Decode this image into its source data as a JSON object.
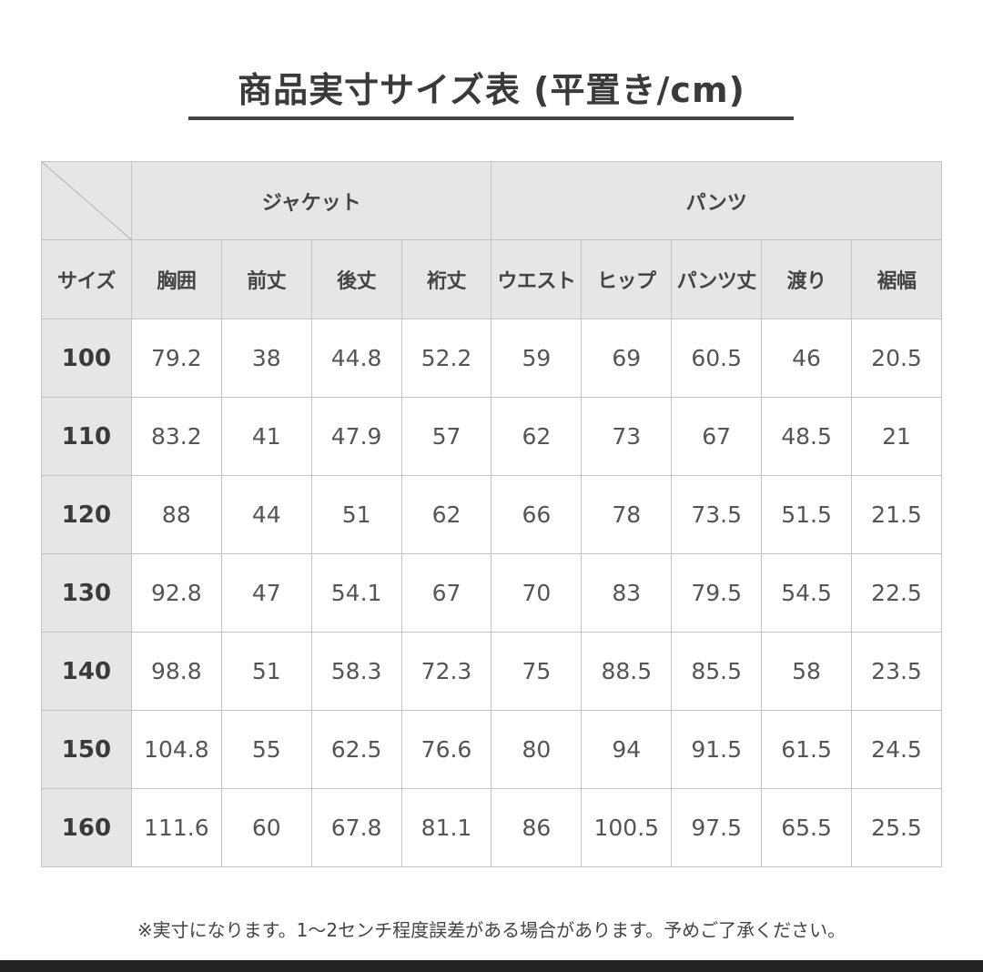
{
  "title": "商品実寸サイズ表 (平置き/cm)",
  "groups": {
    "jacket": "ジャケット",
    "pants": "パンツ"
  },
  "headers": [
    "サイズ",
    "胸囲",
    "前丈",
    "後丈",
    "裄丈",
    "ウエスト",
    "ヒップ",
    "パンツ丈",
    "渡り",
    "裾幅"
  ],
  "rows": [
    {
      "size": "100",
      "values": [
        "79.2",
        "38",
        "44.8",
        "52.2",
        "59",
        "69",
        "60.5",
        "46",
        "20.5"
      ]
    },
    {
      "size": "110",
      "values": [
        "83.2",
        "41",
        "47.9",
        "57",
        "62",
        "73",
        "67",
        "48.5",
        "21"
      ]
    },
    {
      "size": "120",
      "values": [
        "88",
        "44",
        "51",
        "62",
        "66",
        "78",
        "73.5",
        "51.5",
        "21.5"
      ]
    },
    {
      "size": "130",
      "values": [
        "92.8",
        "47",
        "54.1",
        "67",
        "70",
        "83",
        "79.5",
        "54.5",
        "22.5"
      ]
    },
    {
      "size": "140",
      "values": [
        "98.8",
        "51",
        "58.3",
        "72.3",
        "75",
        "88.5",
        "85.5",
        "58",
        "23.5"
      ]
    },
    {
      "size": "150",
      "values": [
        "104.8",
        "55",
        "62.5",
        "76.6",
        "80",
        "94",
        "91.5",
        "61.5",
        "24.5"
      ]
    },
    {
      "size": "160",
      "values": [
        "111.6",
        "60",
        "67.8",
        "81.1",
        "86",
        "100.5",
        "97.5",
        "65.5",
        "25.5"
      ]
    }
  ],
  "note": "※実寸になります。1〜2センチ程度誤差がある場合があります。予めご了承ください。"
}
